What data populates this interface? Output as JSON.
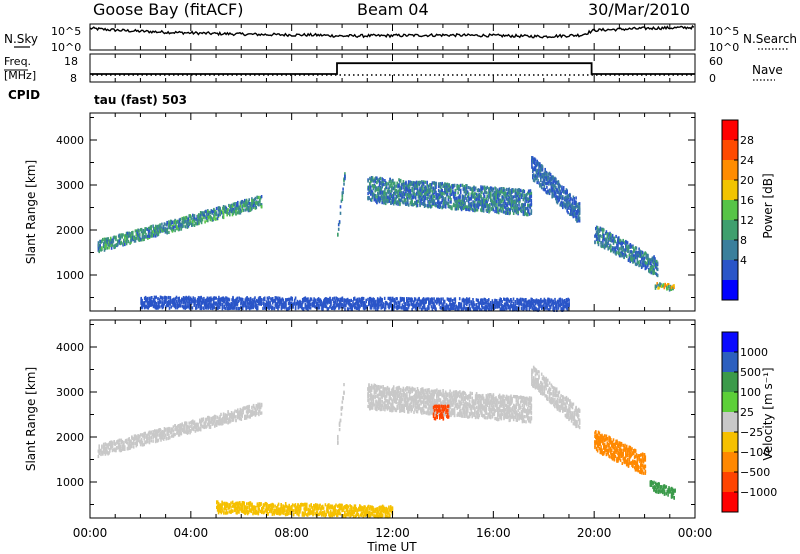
{
  "header": {
    "station": "Goose Bay (fitACF)",
    "beam": "Beam 04",
    "date": "30/Mar/2010"
  },
  "noise_panel": {
    "left_label": "N.Sky",
    "left_ticks": [
      "10^5",
      "10^0"
    ],
    "right_ticks": [
      "10^5",
      "10^0"
    ],
    "right_label": "N.Search"
  },
  "freq_panel": {
    "left_label_1": "Freq.",
    "left_label_2": "[MHz]",
    "left_ticks": [
      "18",
      "8"
    ],
    "right_ticks": [
      "60",
      "0"
    ],
    "right_label": "Nave",
    "cpid_label": "CPID",
    "cpid_value": "tau (fast) 503"
  },
  "time_axis": {
    "label": "Time UT",
    "ticks": [
      "00:00",
      "04:00",
      "08:00",
      "12:00",
      "16:00",
      "20:00",
      "00:00"
    ]
  },
  "power_colorbar": {
    "label": "Power [dB]",
    "ticks": [
      "28",
      "24",
      "20",
      "16",
      "12",
      "8",
      "4"
    ],
    "colors": [
      "#0000ff",
      "#2a55c8",
      "#3a7f9c",
      "#3f9f6e",
      "#57c447",
      "#f2c400",
      "#ff8c00",
      "#ff4a00",
      "#ff0000"
    ]
  },
  "velocity_colorbar": {
    "label": "Velocity [m s⁻¹]",
    "ticks": [
      "1000",
      "500",
      "100",
      "25",
      "−25",
      "−100",
      "−500",
      "−1000"
    ],
    "colors": [
      "#0a0aff",
      "#2c5fbf",
      "#3b9a4a",
      "#5ccf38",
      "#c8c8c8",
      "#f5c000",
      "#ff8800",
      "#ff4400",
      "#ff0000"
    ]
  },
  "chart_data": [
    {
      "type": "line",
      "panel": "noise",
      "x_units": "hours UT",
      "x": [
        0.0,
        0.5,
        1.5,
        3.0,
        5.0,
        7.0,
        9.0,
        10.0,
        12.0,
        14.0,
        16.0,
        18.0,
        19.5,
        20.0,
        21.0,
        22.0,
        23.0,
        24.0
      ],
      "series": [
        {
          "values": [
            4.3,
            4.1,
            3.8,
            3.5,
            3.2,
            3.0,
            2.9,
            2.7,
            2.8,
            2.9,
            2.8,
            2.6,
            2.9,
            3.9,
            4.1,
            4.3,
            4.4,
            4.5
          ]
        }
      ]
    },
    {
      "type": "line",
      "panel": "frequency",
      "x_units": "hours UT",
      "xlim": [
        0,
        24
      ],
      "series": [
        {
          "x": [
            0.0,
            9.8,
            9.8,
            19.9,
            19.9,
            24.0
          ],
          "values": [
            10.5,
            10.5,
            15.0,
            15.0,
            10.5,
            10.5
          ]
        }
      ]
    },
    {
      "type": "scatter",
      "panel": "power",
      "xlabel": "Time UT",
      "ylabel": "Slant Range [km]",
      "xlim": [
        0,
        24
      ],
      "ylim": [
        200,
        4600
      ],
      "yticks": [
        "4000",
        "3000",
        "2000",
        "1000"
      ],
      "regions": [
        {
          "x": [
            0.3,
            6.8
          ],
          "y_start": [
            1600,
            2600
          ],
          "thickness": 250,
          "power_db": [
            6,
            18
          ]
        },
        {
          "x": [
            9.8,
            10.1
          ],
          "y_start": [
            1900,
            3300
          ],
          "thickness": 200,
          "power_db": [
            6,
            14
          ]
        },
        {
          "x": [
            11.0,
            17.5
          ],
          "y_start": [
            2800,
            2500
          ],
          "thickness": 550,
          "power_db": [
            4,
            16
          ]
        },
        {
          "x": [
            17.5,
            19.4
          ],
          "y_start": [
            3300,
            2300
          ],
          "thickness": 500,
          "power_db": [
            4,
            12
          ]
        },
        {
          "x": [
            20.0,
            22.5
          ],
          "y_start": [
            1850,
            1100
          ],
          "thickness": 400,
          "power_db": [
            4,
            16
          ]
        },
        {
          "x": [
            22.4,
            23.2
          ],
          "y_start": [
            750,
            700
          ],
          "thickness": 120,
          "power_db": [
            8,
            28
          ]
        },
        {
          "x": [
            2.0,
            19.0
          ],
          "y_start": [
            350,
            300
          ],
          "thickness": 250,
          "power_db": [
            4,
            8
          ]
        }
      ]
    },
    {
      "type": "scatter",
      "panel": "velocity",
      "xlabel": "Time UT",
      "ylabel": "Slant Range [km]",
      "xlim": [
        0,
        24
      ],
      "ylim": [
        200,
        4600
      ],
      "yticks": [
        "4000",
        "3000",
        "2000",
        "1000"
      ],
      "regions": [
        {
          "x": [
            0.3,
            6.8
          ],
          "y_start": [
            1650,
            2600
          ],
          "thickness": 250,
          "velocity": [
            -25,
            25
          ]
        },
        {
          "x": [
            9.8,
            10.1
          ],
          "y_start": [
            1900,
            3300
          ],
          "thickness": 200,
          "velocity": [
            -25,
            25
          ]
        },
        {
          "x": [
            11.0,
            17.5
          ],
          "y_start": [
            2800,
            2500
          ],
          "thickness": 550,
          "velocity": [
            -25,
            25
          ]
        },
        {
          "x": [
            13.6,
            14.2
          ],
          "y_start": [
            2500,
            2500
          ],
          "thickness": 300,
          "velocity": [
            -1000,
            -500
          ]
        },
        {
          "x": [
            17.5,
            19.4
          ],
          "y_start": [
            3300,
            2300
          ],
          "thickness": 450,
          "velocity": [
            -25,
            25
          ]
        },
        {
          "x": [
            20.0,
            22.0
          ],
          "y_start": [
            1850,
            1300
          ],
          "thickness": 450,
          "velocity": [
            -500,
            -100
          ]
        },
        {
          "x": [
            22.2,
            23.2
          ],
          "y_start": [
            900,
            700
          ],
          "thickness": 200,
          "velocity": [
            100,
            500
          ]
        },
        {
          "x": [
            5.0,
            12.0
          ],
          "y_start": [
            400,
            300
          ],
          "thickness": 250,
          "velocity": [
            -100,
            -25
          ]
        }
      ]
    }
  ]
}
